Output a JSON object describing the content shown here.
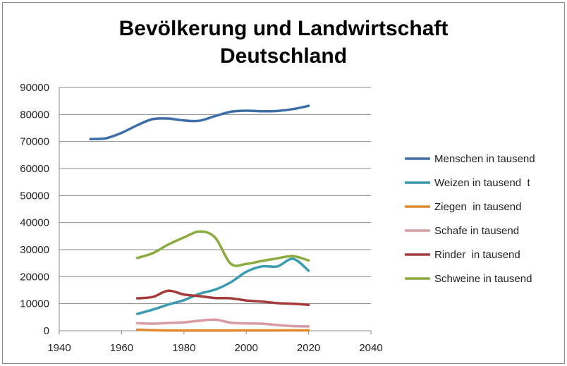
{
  "chart_data": {
    "type": "line",
    "title": [
      "Bevölkerung und Landwirtschaft",
      "Deutschland"
    ],
    "xlabel": "",
    "ylabel": "",
    "xlim": [
      1940,
      2040
    ],
    "ylim": [
      0,
      90000
    ],
    "x_ticks": [
      1940,
      1960,
      1980,
      2000,
      2020,
      2040
    ],
    "y_ticks": [
      0,
      10000,
      20000,
      30000,
      40000,
      50000,
      60000,
      70000,
      80000,
      90000
    ],
    "grid": "horizontal",
    "legend_position": "right",
    "series": [
      {
        "name": "Menschen in tausend",
        "color": "#3d6ea8",
        "x": [
          1950,
          1955,
          1960,
          1965,
          1970,
          1975,
          1980,
          1985,
          1990,
          1995,
          2000,
          2005,
          2010,
          2015,
          2020
        ],
        "values": [
          70900,
          71200,
          73200,
          76000,
          78300,
          78500,
          77800,
          77700,
          79400,
          81000,
          81400,
          81200,
          81300,
          82000,
          83200
        ]
      },
      {
        "name": "Weizen in tausend  t",
        "color": "#3b9bb0",
        "x": [
          1965,
          1970,
          1975,
          1980,
          1985,
          1990,
          1995,
          2000,
          2005,
          2010,
          2015,
          2020
        ],
        "values": [
          6200,
          7800,
          9700,
          11300,
          13700,
          15200,
          17900,
          21800,
          23800,
          23800,
          26600,
          22200
        ]
      },
      {
        "name": "Ziegen  in tausend",
        "color": "#e08a2c",
        "x": [
          1965,
          1970,
          1975,
          1980,
          1985,
          1990,
          1995,
          2000,
          2005,
          2010,
          2015,
          2020
        ],
        "values": [
          400,
          200,
          100,
          60,
          60,
          70,
          90,
          100,
          110,
          110,
          120,
          120
        ]
      },
      {
        "name": "Schafe in tausend",
        "color": "#d89ba0",
        "x": [
          1965,
          1970,
          1975,
          1980,
          1985,
          1990,
          1995,
          2000,
          2005,
          2010,
          2015,
          2020
        ],
        "values": [
          2800,
          2600,
          2900,
          3100,
          3700,
          4100,
          3000,
          2700,
          2600,
          2100,
          1700,
          1600
        ]
      },
      {
        "name": "Rinder  in tausend",
        "color": "#a53b3b",
        "x": [
          1965,
          1970,
          1975,
          1980,
          1985,
          1990,
          1995,
          2000,
          2005,
          2010,
          2015,
          2020
        ],
        "values": [
          12000,
          12500,
          14800,
          13400,
          12800,
          12100,
          12000,
          11200,
          10800,
          10200,
          10000,
          9600
        ]
      },
      {
        "name": "Schweine in tausend",
        "color": "#8aab3e",
        "x": [
          1965,
          1970,
          1975,
          1980,
          1985,
          1990,
          1995,
          2000,
          2005,
          2010,
          2015,
          2020
        ],
        "values": [
          26900,
          28700,
          31900,
          34500,
          36700,
          34500,
          24800,
          24700,
          25800,
          26800,
          27600,
          26000
        ]
      }
    ]
  }
}
